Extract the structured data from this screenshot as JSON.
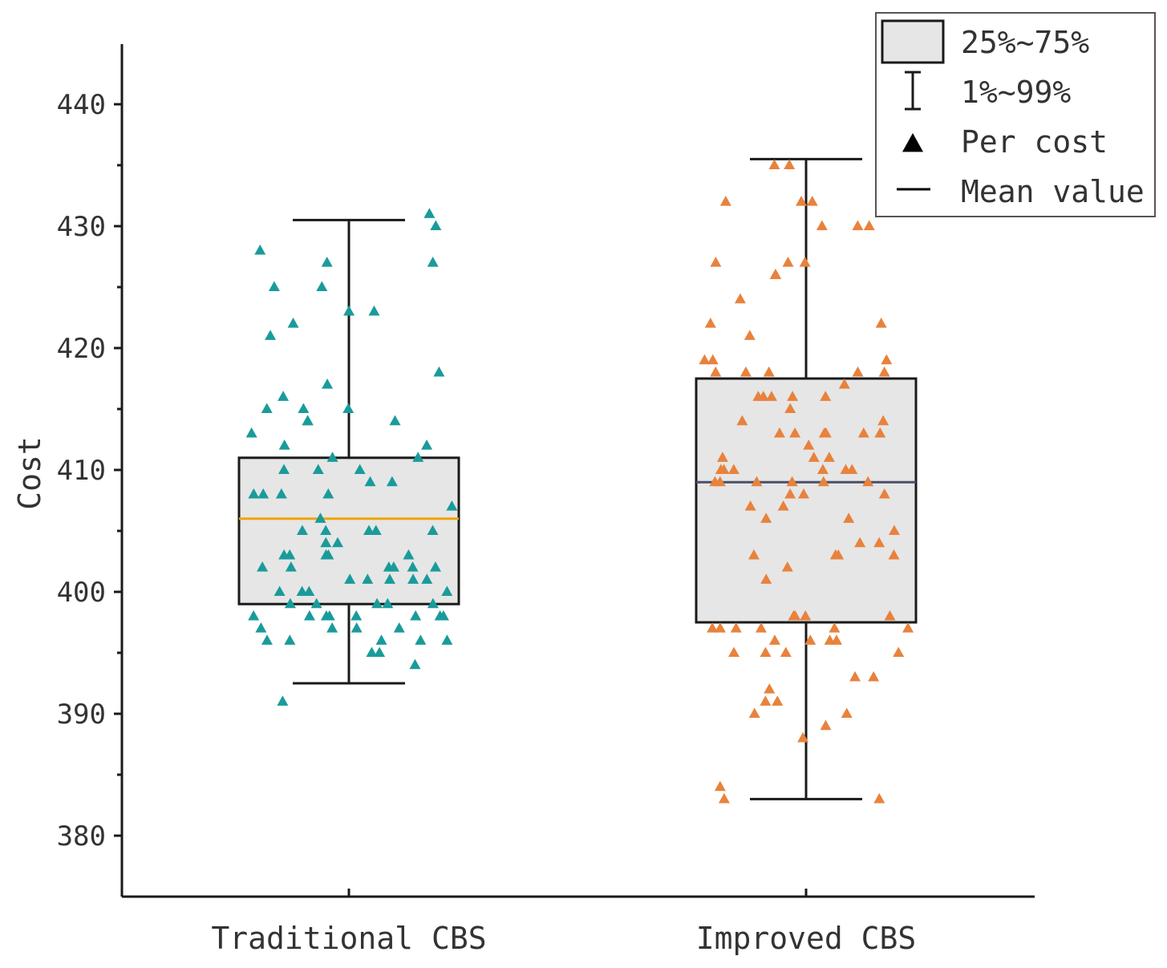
{
  "colors": {
    "box_fill": "#e6e6e6",
    "box_stroke": "#1a1a1a",
    "traditional_points": "#1a9b9b",
    "improved_points": "#e8823c",
    "traditional_mean": "#f0a500",
    "improved_mean": "#4a4f6a",
    "axis": "#1a1a1a"
  },
  "chart_data": {
    "type": "box",
    "title": "",
    "xlabel": "",
    "ylabel": "Cost",
    "ylim": [
      375,
      445
    ],
    "yticks": [
      380,
      390,
      400,
      410,
      420,
      430,
      440
    ],
    "categories": [
      "Traditional CBS",
      "Improved CBS"
    ],
    "legend": {
      "position": "top-right",
      "entries": [
        {
          "symbol": "box",
          "label": "25%~75%"
        },
        {
          "symbol": "whisker",
          "label": "1%~99%"
        },
        {
          "symbol": "triangle",
          "label": "Per cost"
        },
        {
          "symbol": "line",
          "label": "Mean value"
        }
      ]
    },
    "series": [
      {
        "name": "Traditional CBS",
        "q1": 399,
        "q3": 411,
        "mean": 406,
        "whisker_low": 392.5,
        "whisker_high": 430.5,
        "points": [
          431,
          430,
          428,
          427,
          427,
          425,
          425,
          423,
          423,
          422,
          421,
          418,
          417,
          416,
          415,
          415,
          415,
          414,
          414,
          414,
          413,
          412,
          412,
          411,
          411,
          410,
          410,
          410,
          409,
          409,
          408,
          408,
          408,
          408,
          407,
          406,
          405,
          405,
          405,
          405,
          405,
          404,
          404,
          403,
          403,
          403,
          403,
          403,
          402,
          402,
          402,
          402,
          402,
          402,
          401,
          401,
          401,
          401,
          401,
          400,
          400,
          400,
          400,
          399,
          399,
          399,
          399,
          399,
          398,
          398,
          398,
          398,
          398,
          398,
          398,
          398,
          397,
          397,
          397,
          397,
          396,
          396,
          396,
          396,
          396,
          395,
          395,
          394,
          391
        ]
      },
      {
        "name": "Improved CBS",
        "q1": 397.5,
        "q3": 417.5,
        "mean": 409,
        "whisker_low": 383,
        "whisker_high": 435.5,
        "points": [
          436,
          435,
          435,
          432,
          432,
          432,
          430,
          430,
          430,
          427,
          427,
          427,
          426,
          426,
          424,
          422,
          422,
          421,
          419,
          419,
          419,
          418,
          418,
          418,
          418,
          418,
          417,
          416,
          416,
          416,
          416,
          416,
          415,
          414,
          414,
          413,
          413,
          413,
          413,
          413,
          413,
          412,
          411,
          411,
          411,
          410,
          410,
          410,
          410,
          410,
          410,
          409,
          409,
          409,
          409,
          409,
          409,
          408,
          408,
          408,
          407,
          407,
          406,
          406,
          405,
          404,
          404,
          403,
          403,
          403,
          403,
          402,
          401,
          398,
          398,
          398,
          398,
          397,
          397,
          397,
          397,
          397,
          397,
          396,
          396,
          396,
          396,
          395,
          395,
          395,
          395,
          393,
          393,
          392,
          391,
          391,
          390,
          390,
          389,
          388,
          384,
          383,
          383
        ]
      }
    ]
  }
}
